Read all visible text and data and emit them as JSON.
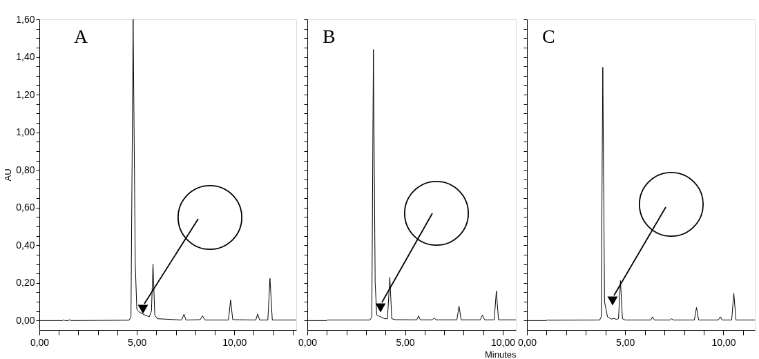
{
  "chart_data": [
    {
      "type": "line",
      "title": "A",
      "ylabel": "AU",
      "x": [
        0,
        1.2,
        1.25,
        1.3,
        1.5,
        1.55,
        1.6,
        4.6,
        4.7,
        4.81,
        4.92,
        5.0,
        5.11,
        5.3,
        5.64,
        5.75,
        5.83,
        5.92,
        6.05,
        7.3,
        7.42,
        7.52,
        8.25,
        8.37,
        8.5,
        9.7,
        9.81,
        9.92,
        11.1,
        11.2,
        11.3,
        11.72,
        11.83,
        11.95,
        13.18
      ],
      "series": [
        {
          "color": "#000000",
          "values": [
            0,
            0,
            0.004,
            0,
            0,
            0.006,
            0,
            0.002,
            0.02,
            1.6,
            0.3,
            0.06,
            0.047,
            0.035,
            0.02,
            0.05,
            0.3,
            0.03,
            0.01,
            0.003,
            0.034,
            0.003,
            0.005,
            0.025,
            0.003,
            0.003,
            0.11,
            0.005,
            0.003,
            0.035,
            0.003,
            0.003,
            0.224,
            0.003,
            0.003
          ]
        }
      ],
      "xlim": [
        0,
        13.18
      ],
      "ylim": [
        -0.05,
        1.6
      ],
      "xticks": [
        {
          "value": 0,
          "label": "0,00"
        },
        {
          "value": 1,
          "label": null
        },
        {
          "value": 2,
          "label": null
        },
        {
          "value": 3,
          "label": null
        },
        {
          "value": 4,
          "label": null
        },
        {
          "value": 5,
          "label": "5,00"
        },
        {
          "value": 6,
          "label": null
        },
        {
          "value": 7,
          "label": null
        },
        {
          "value": 8,
          "label": null
        },
        {
          "value": 9,
          "label": null
        },
        {
          "value": 10,
          "label": "10,00"
        },
        {
          "value": 11,
          "label": null
        },
        {
          "value": 12,
          "label": null
        },
        {
          "value": 13,
          "label": null
        }
      ],
      "yticks": [
        {
          "value": 0,
          "label": "0,00"
        },
        {
          "value": 0.05,
          "label": null
        },
        {
          "value": 0.1,
          "label": null
        },
        {
          "value": 0.15,
          "label": null
        },
        {
          "value": 0.2,
          "label": "0,20"
        },
        {
          "value": 0.25,
          "label": null
        },
        {
          "value": 0.3,
          "label": null
        },
        {
          "value": 0.35,
          "label": null
        },
        {
          "value": 0.4,
          "label": "0,40"
        },
        {
          "value": 0.45,
          "label": null
        },
        {
          "value": 0.5,
          "label": null
        },
        {
          "value": 0.55,
          "label": null
        },
        {
          "value": 0.6,
          "label": "0,60"
        },
        {
          "value": 0.65,
          "label": null
        },
        {
          "value": 0.7,
          "label": null
        },
        {
          "value": 0.75,
          "label": null
        },
        {
          "value": 0.8,
          "label": "0,80"
        },
        {
          "value": 0.85,
          "label": null
        },
        {
          "value": 0.9,
          "label": null
        },
        {
          "value": 0.95,
          "label": null
        },
        {
          "value": 1.0,
          "label": "1,00"
        },
        {
          "value": 1.05,
          "label": null
        },
        {
          "value": 1.1,
          "label": null
        },
        {
          "value": 1.15,
          "label": null
        },
        {
          "value": 1.2,
          "label": "1,20"
        },
        {
          "value": 1.25,
          "label": null
        },
        {
          "value": 1.3,
          "label": null
        },
        {
          "value": 1.35,
          "label": null
        },
        {
          "value": 1.4,
          "label": "1,40"
        },
        {
          "value": 1.45,
          "label": null
        },
        {
          "value": 1.5,
          "label": null
        },
        {
          "value": 1.55,
          "label": null
        },
        {
          "value": 1.6,
          "label": "1,60"
        }
      ]
    },
    {
      "type": "line",
      "title": "B",
      "xlabel": "Minutes",
      "tick_labels": "x",
      "x": [
        0,
        1.0,
        1.05,
        1.1,
        3.2,
        3.3,
        3.38,
        3.47,
        3.55,
        3.65,
        3.75,
        3.95,
        4.1,
        4.22,
        4.32,
        4.5,
        5.6,
        5.69,
        5.78,
        6.4,
        6.49,
        6.58,
        7.65,
        7.76,
        7.87,
        8.85,
        8.96,
        9.07,
        9.56,
        9.67,
        9.78,
        10.67
      ],
      "series": [
        {
          "color": "#000000",
          "values": [
            0,
            0,
            0.004,
            0.003,
            0.003,
            0.02,
            1.44,
            0.2,
            0.03,
            0.025,
            0.02,
            0.01,
            0.01,
            0.23,
            0.01,
            0.005,
            0.004,
            0.025,
            0.004,
            0.004,
            0.015,
            0.004,
            0.004,
            0.077,
            0.004,
            0.004,
            0.03,
            0.004,
            0.004,
            0.157,
            0.004,
            0.004
          ]
        }
      ],
      "xlim": [
        0,
        10.67
      ],
      "ylim": [
        -0.05,
        1.6
      ],
      "xticks": [
        {
          "value": 0,
          "label": "0,00"
        },
        {
          "value": 1,
          "label": null
        },
        {
          "value": 2,
          "label": null
        },
        {
          "value": 3,
          "label": null
        },
        {
          "value": 4,
          "label": null
        },
        {
          "value": 5,
          "label": "5,00"
        },
        {
          "value": 6,
          "label": null
        },
        {
          "value": 7,
          "label": null
        },
        {
          "value": 8,
          "label": null
        },
        {
          "value": 9,
          "label": null
        },
        {
          "value": 10,
          "label": "10,00"
        }
      ],
      "yticks": [
        {
          "value": 0,
          "label": null
        },
        {
          "value": 0.05,
          "label": null
        },
        {
          "value": 0.1,
          "label": null
        },
        {
          "value": 0.15,
          "label": null
        },
        {
          "value": 0.2,
          "label": null
        },
        {
          "value": 0.25,
          "label": null
        },
        {
          "value": 0.3,
          "label": null
        },
        {
          "value": 0.35,
          "label": null
        },
        {
          "value": 0.4,
          "label": null
        },
        {
          "value": 0.45,
          "label": null
        },
        {
          "value": 0.5,
          "label": null
        },
        {
          "value": 0.55,
          "label": null
        },
        {
          "value": 0.6,
          "label": null
        },
        {
          "value": 0.65,
          "label": null
        },
        {
          "value": 0.7,
          "label": null
        },
        {
          "value": 0.75,
          "label": null
        },
        {
          "value": 0.8,
          "label": null
        },
        {
          "value": 0.85,
          "label": null
        },
        {
          "value": 0.9,
          "label": null
        },
        {
          "value": 0.95,
          "label": null
        },
        {
          "value": 1.0,
          "label": null
        },
        {
          "value": 1.05,
          "label": null
        },
        {
          "value": 1.1,
          "label": null
        },
        {
          "value": 1.15,
          "label": null
        },
        {
          "value": 1.2,
          "label": null
        },
        {
          "value": 1.25,
          "label": null
        },
        {
          "value": 1.3,
          "label": null
        },
        {
          "value": 1.35,
          "label": null
        },
        {
          "value": 1.4,
          "label": null
        },
        {
          "value": 1.45,
          "label": null
        },
        {
          "value": 1.5,
          "label": null
        },
        {
          "value": 1.55,
          "label": null
        },
        {
          "value": 1.6,
          "label": null
        }
      ]
    },
    {
      "type": "line",
      "title": "C",
      "tick_labels": "x",
      "x": [
        0,
        1.0,
        1.05,
        1.1,
        3.7,
        3.78,
        3.86,
        3.95,
        4.1,
        4.3,
        4.43,
        4.55,
        4.66,
        4.76,
        4.86,
        5.0,
        6.3,
        6.39,
        6.48,
        7.27,
        7.36,
        7.45,
        8.52,
        8.63,
        8.74,
        9.74,
        9.84,
        9.94,
        10.42,
        10.53,
        10.64,
        11.6
      ],
      "series": [
        {
          "color": "#000000",
          "values": [
            0,
            0,
            0.004,
            0.002,
            0.003,
            0.02,
            1.345,
            0.1,
            0.02,
            0.008,
            0.012,
            0.006,
            0.01,
            0.212,
            0.01,
            0.003,
            0.003,
            0.02,
            0.003,
            0.003,
            0.01,
            0.003,
            0.003,
            0.069,
            0.003,
            0.003,
            0.02,
            0.003,
            0.003,
            0.145,
            0.003,
            0.003
          ]
        }
      ],
      "xlim": [
        0,
        11.6
      ],
      "ylim": [
        -0.05,
        1.6
      ],
      "xticks": [
        {
          "value": 0,
          "label": "0,00"
        },
        {
          "value": 1,
          "label": null
        },
        {
          "value": 2,
          "label": null
        },
        {
          "value": 3,
          "label": null
        },
        {
          "value": 4,
          "label": null
        },
        {
          "value": 5,
          "label": "5,00"
        },
        {
          "value": 6,
          "label": null
        },
        {
          "value": 7,
          "label": null
        },
        {
          "value": 8,
          "label": null
        },
        {
          "value": 9,
          "label": null
        },
        {
          "value": 10,
          "label": "10,00"
        },
        {
          "value": 11,
          "label": null
        }
      ],
      "yticks": [
        {
          "value": 0,
          "label": null
        },
        {
          "value": 0.05,
          "label": null
        },
        {
          "value": 0.1,
          "label": null
        },
        {
          "value": 0.15,
          "label": null
        },
        {
          "value": 0.2,
          "label": null
        },
        {
          "value": 0.25,
          "label": null
        },
        {
          "value": 0.3,
          "label": null
        },
        {
          "value": 0.35,
          "label": null
        },
        {
          "value": 0.4,
          "label": null
        },
        {
          "value": 0.45,
          "label": null
        },
        {
          "value": 0.5,
          "label": null
        },
        {
          "value": 0.55,
          "label": null
        },
        {
          "value": 0.6,
          "label": null
        },
        {
          "value": 0.65,
          "label": null
        },
        {
          "value": 0.7,
          "label": null
        },
        {
          "value": 0.75,
          "label": null
        },
        {
          "value": 0.8,
          "label": null
        },
        {
          "value": 0.85,
          "label": null
        },
        {
          "value": 0.9,
          "label": null
        },
        {
          "value": 0.95,
          "label": null
        },
        {
          "value": 1.0,
          "label": null
        },
        {
          "value": 1.05,
          "label": null
        },
        {
          "value": 1.1,
          "label": null
        },
        {
          "value": 1.15,
          "label": null
        },
        {
          "value": 1.2,
          "label": null
        },
        {
          "value": 1.25,
          "label": null
        },
        {
          "value": 1.3,
          "label": null
        },
        {
          "value": 1.35,
          "label": null
        },
        {
          "value": 1.4,
          "label": null
        },
        {
          "value": 1.45,
          "label": null
        },
        {
          "value": 1.5,
          "label": null
        },
        {
          "value": 1.55,
          "label": null
        },
        {
          "value": 1.6,
          "label": null
        }
      ]
    }
  ]
}
